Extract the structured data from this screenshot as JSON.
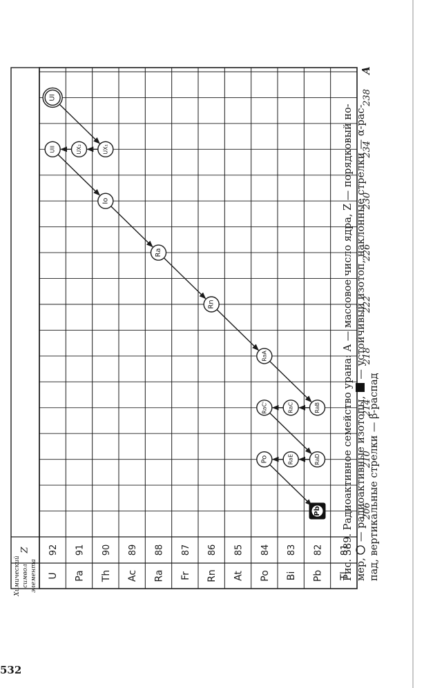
{
  "page_number": "532",
  "table": {
    "header_symbol": "Химический символ элемента",
    "header_symbol_lines": [
      "Химический",
      "символ",
      "элемента"
    ],
    "header_z": "Z",
    "rows": [
      {
        "symbol": "U",
        "z": "92"
      },
      {
        "symbol": "Pa",
        "z": "91"
      },
      {
        "symbol": "Th",
        "z": "90"
      },
      {
        "symbol": "Ac",
        "z": "89"
      },
      {
        "symbol": "Ra",
        "z": "88"
      },
      {
        "symbol": "Fr",
        "z": "87"
      },
      {
        "symbol": "Rn",
        "z": "86"
      },
      {
        "symbol": "At",
        "z": "85"
      },
      {
        "symbol": "Po",
        "z": "84"
      },
      {
        "symbol": "Bi",
        "z": "83"
      },
      {
        "symbol": "Pb",
        "z": "82"
      },
      {
        "symbol": "Tl",
        "z": "81"
      }
    ],
    "mass_ticks": [
      "206",
      "210",
      "214",
      "218",
      "222",
      "226",
      "230",
      "234",
      "238"
    ],
    "mass_axis_letter": "A"
  },
  "isotopes": [
    {
      "label": "UI",
      "a": 238,
      "z": 92,
      "stable": false,
      "double": true
    },
    {
      "label": "UII",
      "a": 234,
      "z": 92,
      "stable": false
    },
    {
      "label": "UX₂",
      "a": 234,
      "z": 91,
      "stable": false
    },
    {
      "label": "UX₁",
      "a": 234,
      "z": 90,
      "stable": false
    },
    {
      "label": "Io",
      "a": 230,
      "z": 90,
      "stable": false
    },
    {
      "label": "Ra",
      "a": 226,
      "z": 88,
      "stable": false
    },
    {
      "label": "Rn",
      "a": 222,
      "z": 86,
      "stable": false
    },
    {
      "label": "RaA",
      "a": 218,
      "z": 84,
      "stable": false
    },
    {
      "label": "RaC'",
      "a": 214,
      "z": 84,
      "stable": false
    },
    {
      "label": "RaC",
      "a": 214,
      "z": 83,
      "stable": false
    },
    {
      "label": "RaB",
      "a": 214,
      "z": 82,
      "stable": false
    },
    {
      "label": "Po",
      "a": 210,
      "z": 84,
      "stable": false
    },
    {
      "label": "RaE",
      "a": 210,
      "z": 83,
      "stable": false
    },
    {
      "label": "RaD",
      "a": 210,
      "z": 82,
      "stable": false
    },
    {
      "label": "Pb",
      "a": 206,
      "z": 82,
      "stable": true
    }
  ],
  "decays": [
    {
      "from": "UI",
      "to": "UX₁",
      "type": "alpha"
    },
    {
      "from": "UX₁",
      "to": "UX₂",
      "type": "beta"
    },
    {
      "from": "UX₂",
      "to": "UII",
      "type": "beta"
    },
    {
      "from": "UII",
      "to": "Io",
      "type": "alpha"
    },
    {
      "from": "Io",
      "to": "Ra",
      "type": "alpha"
    },
    {
      "from": "Ra",
      "to": "Rn",
      "type": "alpha"
    },
    {
      "from": "Rn",
      "to": "RaA",
      "type": "alpha"
    },
    {
      "from": "RaA",
      "to": "RaB",
      "type": "alpha"
    },
    {
      "from": "RaB",
      "to": "RaC",
      "type": "beta"
    },
    {
      "from": "RaC",
      "to": "RaC'",
      "type": "beta"
    },
    {
      "from": "RaC'",
      "to": "RaD",
      "type": "alpha"
    },
    {
      "from": "RaD",
      "to": "RaE",
      "type": "beta"
    },
    {
      "from": "RaE",
      "to": "Po",
      "type": "beta"
    },
    {
      "from": "Po",
      "to": "Pb",
      "type": "alpha"
    }
  ],
  "caption": {
    "line1": "Рис. 389. Радиоактивное семейство урана: A — массовое число ядра, Z — порядковый но-",
    "line2a": "мер, ",
    "line2b": " — радиоактивные изотопы, ",
    "line2c": " — устойчивый изотоп, наклонные стрелки — α-рас-",
    "line3": "пад, вертикальные стрелки — β-распад"
  }
}
